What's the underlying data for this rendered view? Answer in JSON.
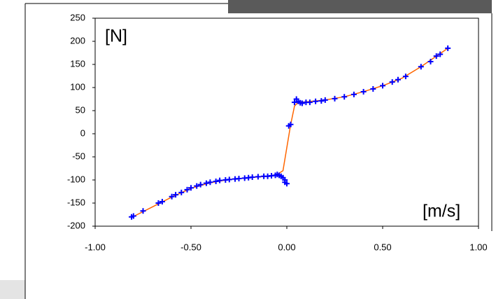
{
  "chart_data": {
    "type": "scatter",
    "x_label": "[m/s]",
    "y_label": "[N]",
    "xlim": [
      -1,
      1
    ],
    "xticks": [
      {
        "value": -1,
        "label": "-1.00"
      },
      {
        "value": -0.5,
        "label": "-0.50"
      },
      {
        "value": 0,
        "label": "0.00"
      },
      {
        "value": 0.5,
        "label": "0.50"
      },
      {
        "value": 1,
        "label": "1.00"
      }
    ],
    "ylim": [
      -200,
      250
    ],
    "yticks": [
      -200,
      -150,
      -100,
      -50,
      0,
      50,
      100,
      150,
      200,
      250
    ],
    "grid": false,
    "series": [
      {
        "mode": "markers",
        "color": "#0000ff",
        "x": [
          -0.81,
          -0.8,
          -0.75,
          -0.67,
          -0.65,
          -0.6,
          -0.58,
          -0.55,
          -0.52,
          -0.5,
          -0.47,
          -0.45,
          -0.42,
          -0.4,
          -0.37,
          -0.35,
          -0.32,
          -0.3,
          -0.27,
          -0.25,
          -0.22,
          -0.2,
          -0.18,
          -0.15,
          -0.12,
          -0.1,
          -0.08,
          -0.06,
          -0.05,
          -0.04,
          -0.03,
          -0.02,
          -0.01,
          -0.01,
          0.0,
          0.01,
          0.02,
          0.04,
          0.05,
          0.06,
          0.07,
          0.08,
          0.1,
          0.12,
          0.15,
          0.18,
          0.2,
          0.25,
          0.3,
          0.35,
          0.4,
          0.45,
          0.5,
          0.55,
          0.58,
          0.62,
          0.7,
          0.75,
          0.78,
          0.8,
          0.84
        ],
        "values": [
          -180,
          -178,
          -167,
          -150,
          -147,
          -136,
          -132,
          -127,
          -121,
          -117,
          -113,
          -110,
          -107,
          -105,
          -103,
          -101,
          -100,
          -99,
          -98,
          -97,
          -96,
          -95,
          -94,
          -93,
          -92,
          -92,
          -91,
          -90,
          -88,
          -90,
          -92,
          -95,
          -100,
          -105,
          -108,
          17,
          20,
          68,
          75,
          70,
          67,
          66,
          68,
          68,
          70,
          71,
          73,
          76,
          80,
          85,
          91,
          97,
          104,
          112,
          117,
          124,
          145,
          156,
          168,
          172,
          185
        ]
      },
      {
        "mode": "lines",
        "color": "#ff6600",
        "x": [
          -0.81,
          -0.7,
          -0.6,
          -0.5,
          -0.4,
          -0.3,
          -0.2,
          -0.1,
          -0.05,
          -0.02,
          0.0,
          0.02,
          0.04,
          0.06,
          0.1,
          0.2,
          0.3,
          0.4,
          0.5,
          0.6,
          0.7,
          0.84
        ],
        "values": [
          -181,
          -158,
          -137,
          -118,
          -106,
          -99,
          -95,
          -92,
          -88,
          -80,
          -30,
          20,
          60,
          68,
          69,
          73,
          80,
          91,
          104,
          120,
          145,
          185
        ]
      }
    ]
  }
}
